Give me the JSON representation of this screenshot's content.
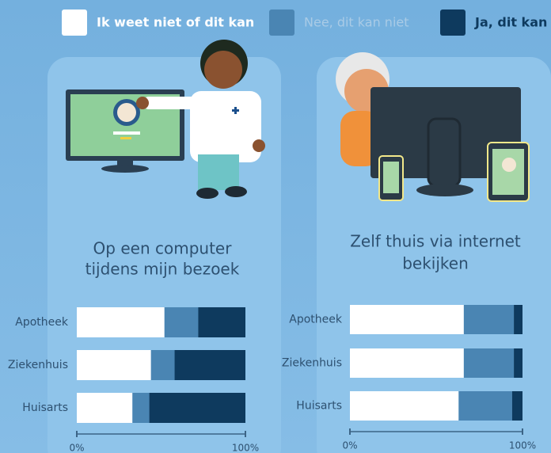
{
  "chart_data": [
    {
      "type": "stacked-bar-horizontal",
      "title": [
        "Op een computer",
        "tijdens mijn bezoek"
      ],
      "categories": [
        "Apotheek",
        "Ziekenhuis",
        "Huisarts"
      ],
      "series": [
        {
          "name": "Ik weet niet of dit kan",
          "color": "#ffffff",
          "values": [
            52,
            44,
            33
          ]
        },
        {
          "name": "Nee, dit kan niet",
          "color": "#4a85b3",
          "values": [
            20,
            14,
            10
          ]
        },
        {
          "name": "Ja, dit kan",
          "color": "#0e3a5e",
          "values": [
            28,
            42,
            57
          ]
        }
      ],
      "xlim": [
        0,
        100
      ],
      "xticks": [
        {
          "value": 0,
          "label": "0%"
        },
        {
          "value": 100,
          "label": "100%"
        }
      ]
    },
    {
      "type": "stacked-bar-horizontal",
      "title": [
        "Zelf thuis via internet",
        "bekijken"
      ],
      "categories": [
        "Apotheek",
        "Ziekenhuis",
        "Huisarts"
      ],
      "series": [
        {
          "name": "Ik weet niet of dit kan",
          "color": "#ffffff",
          "values": [
            66,
            66,
            63
          ]
        },
        {
          "name": "Nee, dit kan niet",
          "color": "#4a85b3",
          "values": [
            29,
            29,
            31
          ]
        },
        {
          "name": "Ja, dit kan",
          "color": "#0e3a5e",
          "values": [
            5,
            5,
            6
          ]
        }
      ],
      "xlim": [
        0,
        100
      ],
      "xticks": [
        {
          "value": 0,
          "label": "0%"
        },
        {
          "value": 100,
          "label": "100%"
        }
      ]
    }
  ]
}
